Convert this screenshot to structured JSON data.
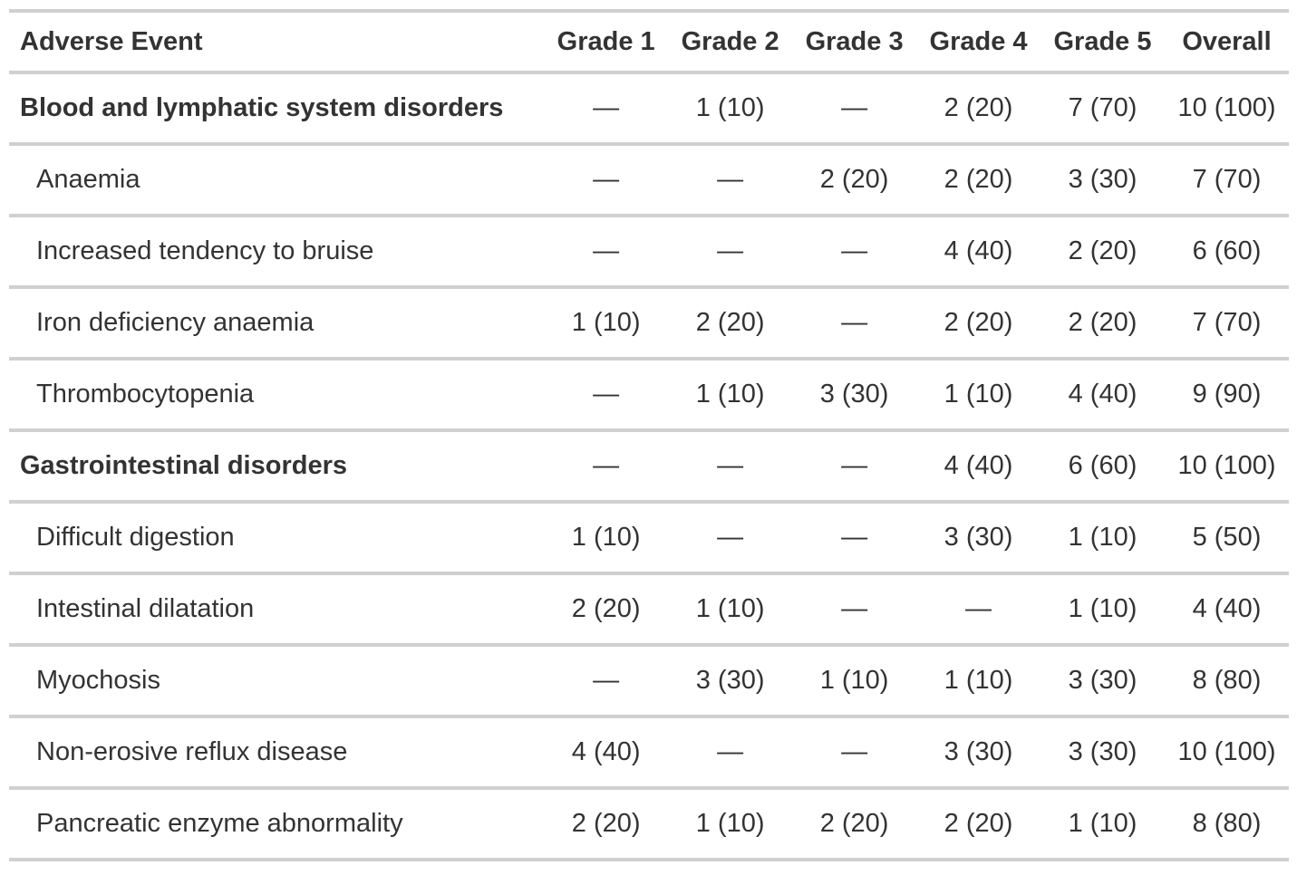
{
  "table": {
    "columns": [
      "Adverse Event",
      "Grade 1",
      "Grade 2",
      "Grade 3",
      "Grade 4",
      "Grade 5",
      "Overall"
    ],
    "rows": [
      {
        "label": "Blood and lymphatic system disorders",
        "type": "category",
        "values": [
          "—",
          "1 (10)",
          "—",
          "2 (20)",
          "7 (70)",
          "10 (100)"
        ]
      },
      {
        "label": "Anaemia",
        "type": "item",
        "values": [
          "—",
          "—",
          "2 (20)",
          "2 (20)",
          "3 (30)",
          "7 (70)"
        ]
      },
      {
        "label": "Increased tendency to bruise",
        "type": "item",
        "values": [
          "—",
          "—",
          "—",
          "4 (40)",
          "2 (20)",
          "6 (60)"
        ]
      },
      {
        "label": "Iron deficiency anaemia",
        "type": "item",
        "values": [
          "1 (10)",
          "2 (20)",
          "—",
          "2 (20)",
          "2 (20)",
          "7 (70)"
        ]
      },
      {
        "label": "Thrombocytopenia",
        "type": "item",
        "values": [
          "—",
          "1 (10)",
          "3 (30)",
          "1 (10)",
          "4 (40)",
          "9 (90)"
        ]
      },
      {
        "label": "Gastrointestinal disorders",
        "type": "category",
        "values": [
          "—",
          "—",
          "—",
          "4 (40)",
          "6 (60)",
          "10 (100)"
        ]
      },
      {
        "label": "Difficult digestion",
        "type": "item",
        "values": [
          "1 (10)",
          "—",
          "—",
          "3 (30)",
          "1 (10)",
          "5 (50)"
        ]
      },
      {
        "label": "Intestinal dilatation",
        "type": "item",
        "values": [
          "2 (20)",
          "1 (10)",
          "—",
          "—",
          "1 (10)",
          "4 (40)"
        ]
      },
      {
        "label": "Myochosis",
        "type": "item",
        "values": [
          "—",
          "3 (30)",
          "1 (10)",
          "1 (10)",
          "3 (30)",
          "8 (80)"
        ]
      },
      {
        "label": "Non-erosive reflux disease",
        "type": "item",
        "values": [
          "4 (40)",
          "—",
          "—",
          "3 (30)",
          "3 (30)",
          "10 (100)"
        ]
      },
      {
        "label": "Pancreatic enzyme abnormality",
        "type": "item",
        "values": [
          "2 (20)",
          "1 (10)",
          "2 (20)",
          "2 (20)",
          "1 (10)",
          "8 (80)"
        ]
      }
    ],
    "colors": {
      "border": "#d0d0d0",
      "text": "#333333",
      "background": "#ffffff"
    }
  }
}
